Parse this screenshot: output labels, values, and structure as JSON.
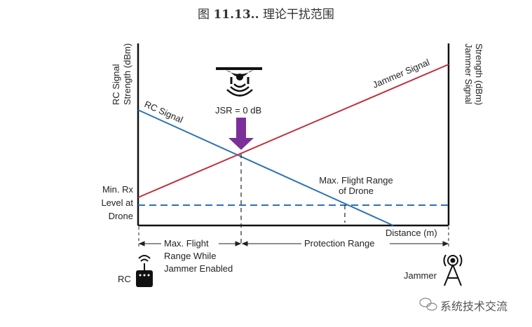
{
  "title": {
    "prefix": "图",
    "number": "11.13..",
    "text": "理论干扰范围"
  },
  "diagram": {
    "left_axis_label": [
      "RC Signal",
      "Strength (dBm)"
    ],
    "right_axis_label": [
      "Jammer Signal",
      "Strength (dBm)"
    ],
    "x_axis_label": "Distance (m)",
    "rc_signal_label": "RC Signal",
    "jammer_signal_label": "Jammer Signal",
    "jsr_label": "JSR = 0 dB",
    "min_rx_label": [
      "Min. Rx",
      "Level at",
      "Drone"
    ],
    "max_range_label": [
      "Max. Flight Range",
      "of Drone"
    ],
    "max_flight_label": [
      "Max. Flight",
      "Range While",
      "Jammer Enabled"
    ],
    "protection_label": "Protection Range",
    "rc_label": "RC",
    "jammer_label": "Jammer",
    "colors": {
      "rc": "#2a72b5",
      "jammer": "#c0303a",
      "arrow": "#7b2f9a",
      "dashed": "#2a72b5"
    }
  },
  "watermark": "系统技术交流"
}
